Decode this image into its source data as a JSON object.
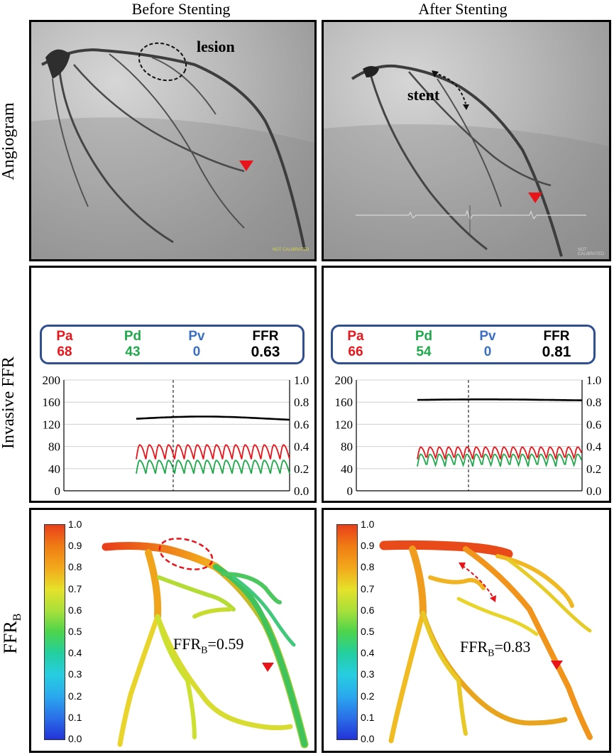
{
  "columns": {
    "before": "Before Stenting",
    "after": "After Stenting"
  },
  "rows": {
    "angiogram": "Angiogram",
    "invasive_ffr": "Invasive FFR",
    "ffrb_main": "FFR",
    "ffrb_sub": "B"
  },
  "angiogram": {
    "before": {
      "annotation": "lesion",
      "watermark": "NOT CALIBRATED"
    },
    "after": {
      "annotation": "stent",
      "watermark": "NOT CALIBRATED"
    }
  },
  "invasive": {
    "labels": {
      "pa": "Pa",
      "pd": "Pd",
      "pv": "Pv",
      "ffr": "FFR"
    },
    "before": {
      "pa": "68",
      "pd": "43",
      "pv": "0",
      "ffr": "0.63"
    },
    "after": {
      "pa": "66",
      "pd": "54",
      "pv": "0",
      "ffr": "0.81"
    }
  },
  "chart_data": [
    {
      "type": "line",
      "title": "Invasive FFR - Before Stenting",
      "left_axis": {
        "ticks": [
          0,
          40,
          80,
          120,
          160,
          200
        ],
        "range": [
          0,
          200
        ]
      },
      "right_axis": {
        "ticks": [
          0.0,
          0.2,
          0.4,
          0.6,
          0.8,
          1.0
        ],
        "range": [
          0.0,
          1.0
        ]
      },
      "series": [
        {
          "name": "FFR",
          "color": "#000000",
          "axis": "right",
          "approx_level": 0.65
        },
        {
          "name": "Pa",
          "color": "#e8161b",
          "axis": "left",
          "approx_mean": 70
        },
        {
          "name": "Pd",
          "color": "#1fa84a",
          "axis": "left",
          "approx_mean": 43
        }
      ]
    },
    {
      "type": "line",
      "title": "Invasive FFR - After Stenting",
      "left_axis": {
        "ticks": [
          0,
          40,
          80,
          120,
          160,
          200
        ],
        "range": [
          0,
          200
        ]
      },
      "right_axis": {
        "ticks": [
          0.0,
          0.2,
          0.4,
          0.6,
          0.8,
          1.0
        ],
        "range": [
          0.0,
          1.0
        ]
      },
      "series": [
        {
          "name": "FFR",
          "color": "#000000",
          "axis": "right",
          "approx_level": 0.82
        },
        {
          "name": "Pa",
          "color": "#e8161b",
          "axis": "left",
          "approx_mean": 68
        },
        {
          "name": "Pd",
          "color": "#1fa84a",
          "axis": "left",
          "approx_mean": 55
        }
      ]
    }
  ],
  "colorbar": {
    "ticks": [
      "1.0",
      "0.9",
      "0.8",
      "0.7",
      "0.6",
      "0.5",
      "0.4",
      "0.3",
      "0.2",
      "0.1",
      "0.0"
    ]
  },
  "ffrb": {
    "before": {
      "prefix": "FFR",
      "sub": "B",
      "value": "=0.59"
    },
    "after": {
      "prefix": "FFR",
      "sub": "B",
      "value": "=0.83"
    }
  },
  "colors": {
    "pa": "#e8161b",
    "pd": "#1fa84a",
    "pv": "#3a6fc2",
    "ffr": "#000000",
    "box": "#2f4f8f",
    "marker": "#e8141a"
  }
}
